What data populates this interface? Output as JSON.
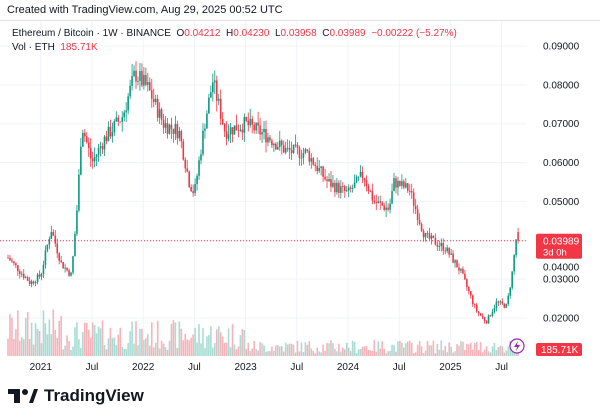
{
  "header": {
    "created": "Created with TradingView.com, Aug 29, 2025 00:52 UTC"
  },
  "legend": {
    "symbol": "Ethereum / Bitcoin · 1W · BINANCE",
    "o_label": "O",
    "o": "0.04212",
    "h_label": "H",
    "h": "0.04230",
    "l_label": "L",
    "l": "0.03958",
    "c_label": "C",
    "c": "0.03989",
    "change": "−0.00222 (−5.27%)",
    "vol_label": "Vol · ETH",
    "vol": "185.71K"
  },
  "price_label": {
    "value": "0.03989",
    "countdown": "3d 0h"
  },
  "volume_label": "185.71K",
  "brand": "TradingView",
  "colors": {
    "up": "#089981",
    "down": "#f23645",
    "up_vol": "#a8dcd3",
    "down_vol": "#f7b3b9"
  },
  "chart_data": {
    "type": "candlestick",
    "title": "Ethereum / Bitcoin · 1W · BINANCE",
    "y_ticks": [
      "0.09000",
      "0.08000",
      "0.07000",
      "0.06000",
      "0.05000",
      "0.04000",
      "0.03000",
      "0.02000"
    ],
    "y_tick_values": [
      0.09,
      0.08,
      0.07,
      0.06,
      0.05,
      0.04,
      0.03,
      0.02
    ],
    "x_ticks": [
      "2021",
      "Jul",
      "2022",
      "Jul",
      "2023",
      "Jul",
      "2024",
      "Jul",
      "2025",
      "Jul"
    ],
    "x_tick_values": [
      2021.0,
      2021.5,
      2022.0,
      2022.5,
      2023.0,
      2023.5,
      2024.0,
      2024.5,
      2025.0,
      2025.5
    ],
    "x_range": [
      2020.68,
      2025.66
    ],
    "y_range": [
      0.0145,
      0.094
    ],
    "last_close": 0.03989,
    "close_keypoints": [
      [
        2020.68,
        0.0355
      ],
      [
        2020.9,
        0.029
      ],
      [
        2021.0,
        0.031
      ],
      [
        2021.1,
        0.043
      ],
      [
        2021.2,
        0.034
      ],
      [
        2021.3,
        0.031
      ],
      [
        2021.36,
        0.05
      ],
      [
        2021.4,
        0.07
      ],
      [
        2021.5,
        0.06
      ],
      [
        2021.62,
        0.066
      ],
      [
        2021.8,
        0.072
      ],
      [
        2021.92,
        0.083
      ],
      [
        2022.05,
        0.079
      ],
      [
        2022.2,
        0.07
      ],
      [
        2022.35,
        0.068
      ],
      [
        2022.45,
        0.055
      ],
      [
        2022.5,
        0.052
      ],
      [
        2022.6,
        0.07
      ],
      [
        2022.68,
        0.081
      ],
      [
        2022.8,
        0.068
      ],
      [
        2023.0,
        0.07
      ],
      [
        2023.2,
        0.067
      ],
      [
        2023.4,
        0.063
      ],
      [
        2023.6,
        0.0625
      ],
      [
        2023.8,
        0.055
      ],
      [
        2024.0,
        0.052
      ],
      [
        2024.15,
        0.057
      ],
      [
        2024.25,
        0.05
      ],
      [
        2024.4,
        0.048
      ],
      [
        2024.45,
        0.055
      ],
      [
        2024.6,
        0.053
      ],
      [
        2024.75,
        0.041
      ],
      [
        2024.95,
        0.038
      ],
      [
        2025.1,
        0.032
      ],
      [
        2025.25,
        0.022
      ],
      [
        2025.35,
        0.019
      ],
      [
        2025.45,
        0.024
      ],
      [
        2025.55,
        0.023
      ],
      [
        2025.6,
        0.031
      ],
      [
        2025.64,
        0.04
      ],
      [
        2025.655,
        0.042
      ],
      [
        2025.66,
        0.03989
      ]
    ]
  }
}
